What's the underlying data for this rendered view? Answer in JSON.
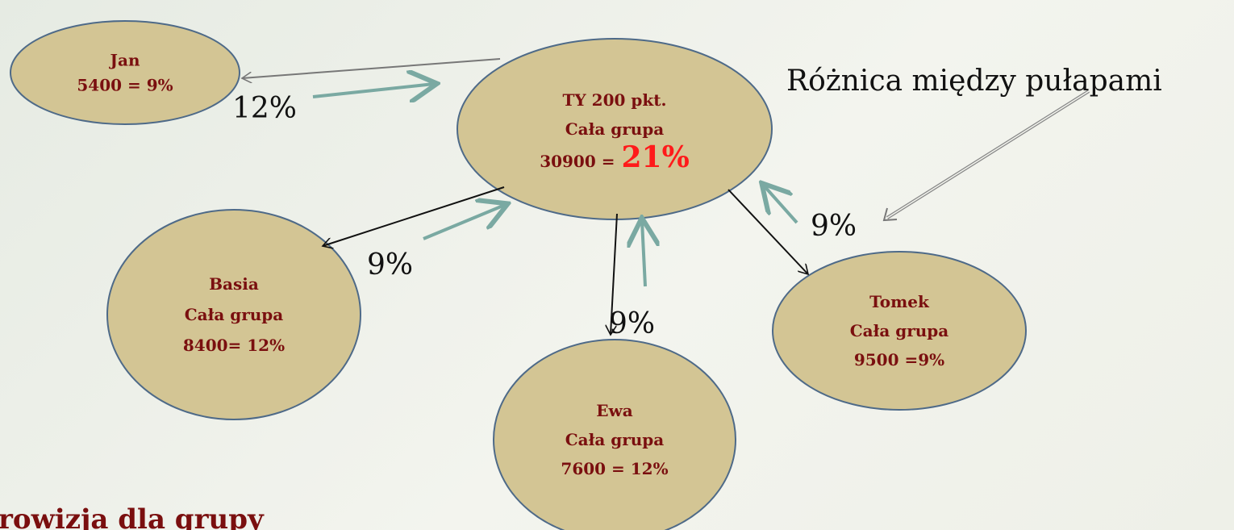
{
  "nodes": [
    {
      "lines": [
        "Jan",
        "5400 = 9%"
      ]
    },
    {
      "lines": [
        "TY 200 pkt.",
        "Cała grupa",
        "30900 ="
      ],
      "highlight": "21%"
    },
    {
      "lines": [
        "Basia",
        "Cała grupa",
        "8400= 12%"
      ]
    },
    {
      "lines": [
        "Ewa",
        "Cała grupa",
        "7600 =  12%"
      ]
    },
    {
      "lines": [
        "Tomek",
        "Cała grupa",
        "9500 =9%"
      ]
    }
  ],
  "edge_labels": [
    "12%",
    "9%",
    "9%",
    "9%"
  ],
  "annotation": "Różnica między pułapami",
  "footer": "rowizja dla grupy"
}
